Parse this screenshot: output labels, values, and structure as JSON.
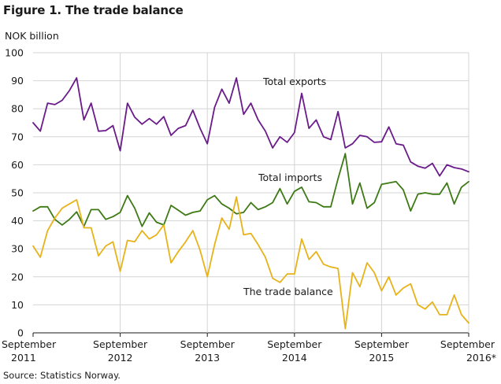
{
  "figure_title": "Figure 1. The trade balance",
  "unit_label": "NOK billion",
  "source": "Source: Statistics Norway.",
  "chart_data": {
    "type": "line",
    "title": "Figure 1. The trade balance",
    "ylabel": "NOK billion",
    "ylim": [
      0,
      100
    ],
    "yticks": [
      0,
      10,
      20,
      30,
      40,
      50,
      60,
      70,
      80,
      90,
      100
    ],
    "grid": "horizontal",
    "x_tick_labels": [
      {
        "line1": "September",
        "line2": "2011"
      },
      {
        "line1": "September",
        "line2": "2012"
      },
      {
        "line1": "September",
        "line2": "2013"
      },
      {
        "line1": "September",
        "line2": "2014"
      },
      {
        "line1": "September",
        "line2": "2015"
      },
      {
        "line1": "September",
        "line2": "2016*"
      }
    ],
    "series": [
      {
        "name": "Total exports",
        "color": "#6a1b8a",
        "values": [
          75.0,
          72.0,
          82.0,
          81.5,
          83.0,
          86.5,
          91.0,
          76.0,
          82.0,
          72.0,
          72.2,
          74.0,
          65.0,
          82.0,
          77.0,
          74.5,
          76.5,
          74.5,
          77.2,
          70.5,
          73.0,
          74.0,
          79.5,
          73.0,
          67.5,
          80.5,
          87.0,
          82.0,
          91.0,
          78.0,
          82.0,
          76.0,
          72.0,
          66.0,
          70.0,
          68.0,
          71.5,
          85.5,
          73.0,
          76.0,
          70.0,
          69.0,
          79.0,
          66.0,
          67.5,
          70.5,
          70.0,
          68.0,
          68.2,
          73.5,
          67.5,
          67.0,
          61.0,
          59.5,
          58.8,
          60.5,
          56.0,
          60.0,
          59.0,
          58.5,
          57.5
        ]
      },
      {
        "name": "Total imports",
        "color": "#3d7a16",
        "values": [
          43.5,
          45.0,
          45.0,
          40.5,
          38.5,
          40.5,
          43.2,
          38.0,
          44.0,
          44.0,
          40.5,
          41.5,
          43.0,
          49.0,
          44.5,
          38.0,
          42.8,
          39.5,
          38.5,
          45.5,
          43.8,
          42.0,
          43.0,
          43.5,
          47.5,
          49.0,
          46.0,
          44.5,
          42.5,
          43.0,
          46.5,
          44.0,
          45.0,
          46.5,
          51.5,
          46.0,
          50.5,
          52.0,
          46.8,
          46.5,
          45.0,
          45.0,
          55.0,
          64.0,
          46.0,
          53.5,
          44.5,
          46.5,
          53.0,
          53.5,
          54.0,
          51.0,
          43.5,
          49.5,
          50.0,
          49.5,
          49.5,
          53.5,
          46.0,
          52.0,
          54.0
        ]
      },
      {
        "name": "The trade balance",
        "color": "#e8b219",
        "values": [
          31.0,
          27.0,
          36.5,
          41.0,
          44.5,
          46.0,
          47.5,
          37.5,
          37.5,
          27.5,
          31.0,
          32.5,
          22.0,
          33.0,
          32.5,
          36.5,
          33.5,
          35.0,
          38.5,
          25.0,
          29.0,
          32.5,
          36.5,
          29.5,
          20.0,
          31.5,
          41.0,
          37.0,
          48.5,
          35.0,
          35.5,
          31.5,
          27.0,
          19.5,
          18.0,
          21.0,
          21.0,
          33.5,
          26.2,
          29.0,
          24.5,
          23.5,
          23.0,
          1.5,
          21.5,
          16.5,
          25.0,
          21.5,
          15.0,
          20.0,
          13.5,
          16.0,
          17.5,
          10.0,
          8.5,
          11.0,
          6.5,
          6.5,
          13.5,
          6.5,
          3.5
        ]
      }
    ],
    "annotations": [
      {
        "text": "Total exports",
        "series": "Total exports"
      },
      {
        "text": "Total imports",
        "series": "Total imports"
      },
      {
        "text": "The trade balance",
        "series": "The trade balance"
      }
    ]
  }
}
